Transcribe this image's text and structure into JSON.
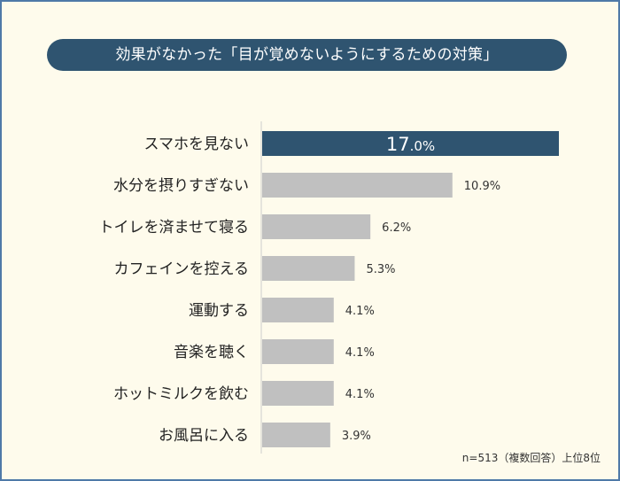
{
  "chart_data": {
    "type": "bar",
    "orientation": "horizontal",
    "title": "効果がなかった「目が覚めないようにするための対策」",
    "categories": [
      "スマホを見ない",
      "水分を摂りすぎない",
      "トイレを済ませて寝る",
      "カフェインを控える",
      "運動する",
      "音楽を聴く",
      "ホットミルクを飲む",
      "お風呂に入る"
    ],
    "values": [
      17.0,
      10.9,
      6.2,
      5.3,
      4.1,
      4.1,
      4.1,
      3.9
    ],
    "value_labels": [
      "17.0%",
      "10.9%",
      "6.2%",
      "5.3%",
      "4.1%",
      "4.1%",
      "4.1%",
      "3.9%"
    ],
    "unit": "%",
    "xlim": [
      0,
      17
    ],
    "grid": false,
    "colors": {
      "highlight": "#2f5470",
      "default": "#c0c0c0"
    },
    "note": "n=513（複数回答）上位8位"
  }
}
